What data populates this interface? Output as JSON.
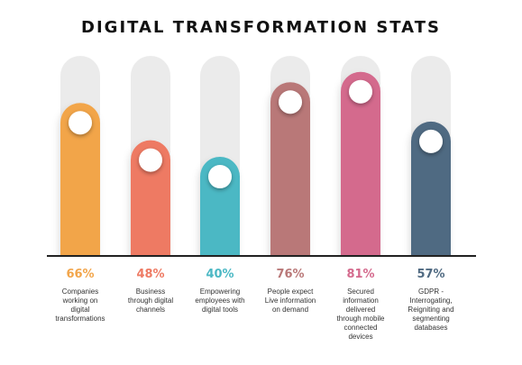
{
  "title": "DIGITAL TRANSFORMATION STATS",
  "chart_data": {
    "type": "bar",
    "title": "DIGITAL TRANSFORMATION STATS",
    "xlabel": "",
    "ylabel": "",
    "ylim": [
      0,
      100
    ],
    "categories": [
      "Companies working on digital transformations",
      "Business through digital channels",
      "Empowering employees with digital tools",
      "People expect Live information on demand",
      "Secured information delivered through mobile connected devices",
      "GDPR - Interrogating, Reigniting and segmenting databases"
    ],
    "values": [
      66,
      48,
      40,
      76,
      81,
      57
    ],
    "value_labels": [
      "66%",
      "48%",
      "40%",
      "76%",
      "81%",
      "57%"
    ],
    "colors": [
      "#F2A54A",
      "#EE7A63",
      "#4BB8C4",
      "#B97878",
      "#D46A8D",
      "#506A82"
    ],
    "track_color": "#EBEBEB",
    "grid": false,
    "legend": "none"
  },
  "descriptions": [
    [
      "Companies",
      "working on",
      "digital",
      "transformations"
    ],
    [
      "Business",
      "through digital",
      "channels"
    ],
    [
      "Empowering",
      "employees with",
      "digital tools"
    ],
    [
      "People expect",
      "Live information",
      "on demand"
    ],
    [
      "Secured",
      "information",
      "delivered",
      "through mobile",
      "connected",
      "devices"
    ],
    [
      "GDPR -",
      "Interrogating,",
      "Reigniting and",
      "segmenting",
      "databases"
    ]
  ]
}
